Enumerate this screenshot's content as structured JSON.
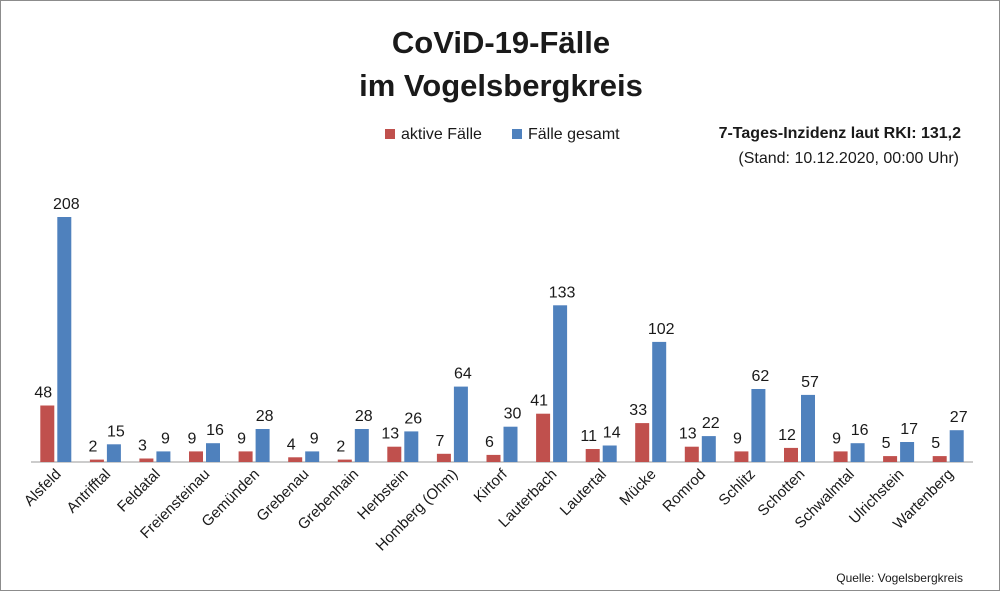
{
  "chart_data": {
    "type": "bar",
    "title_lines": [
      "CoViD-19-Fälle",
      "im Vogelsbergkreis"
    ],
    "categories": [
      "Alsfeld",
      "Antrifftal",
      "Feldatal",
      "Freiensteinau",
      "Gemünden",
      "Grebenau",
      "Grebenhain",
      "Herbstein",
      "Homberg (Ohm)",
      "Kirtorf",
      "Lauterbach",
      "Lautertal",
      "Mücke",
      "Romrod",
      "Schlitz",
      "Schotten",
      "Schwalmtal",
      "Ulrichstein",
      "Wartenberg"
    ],
    "series": [
      {
        "name": "aktive Fälle",
        "color": "#c0504d",
        "values": [
          48,
          2,
          3,
          9,
          9,
          4,
          2,
          13,
          7,
          6,
          41,
          11,
          33,
          13,
          9,
          12,
          9,
          5,
          5
        ]
      },
      {
        "name": "Fälle gesamt",
        "color": "#4f81bd",
        "values": [
          208,
          15,
          9,
          16,
          28,
          9,
          28,
          26,
          64,
          30,
          133,
          14,
          102,
          22,
          62,
          57,
          16,
          17,
          27
        ]
      }
    ],
    "ylim": [
      0,
      208
    ],
    "legend_position": "top",
    "grid": false,
    "annotation": {
      "line1": "7-Tages-Inzidenz laut RKI: 131,2",
      "line2": "(Stand: 10.12.2020, 00:00 Uhr)"
    },
    "source": "Quelle: Vogelsbergkreis"
  }
}
